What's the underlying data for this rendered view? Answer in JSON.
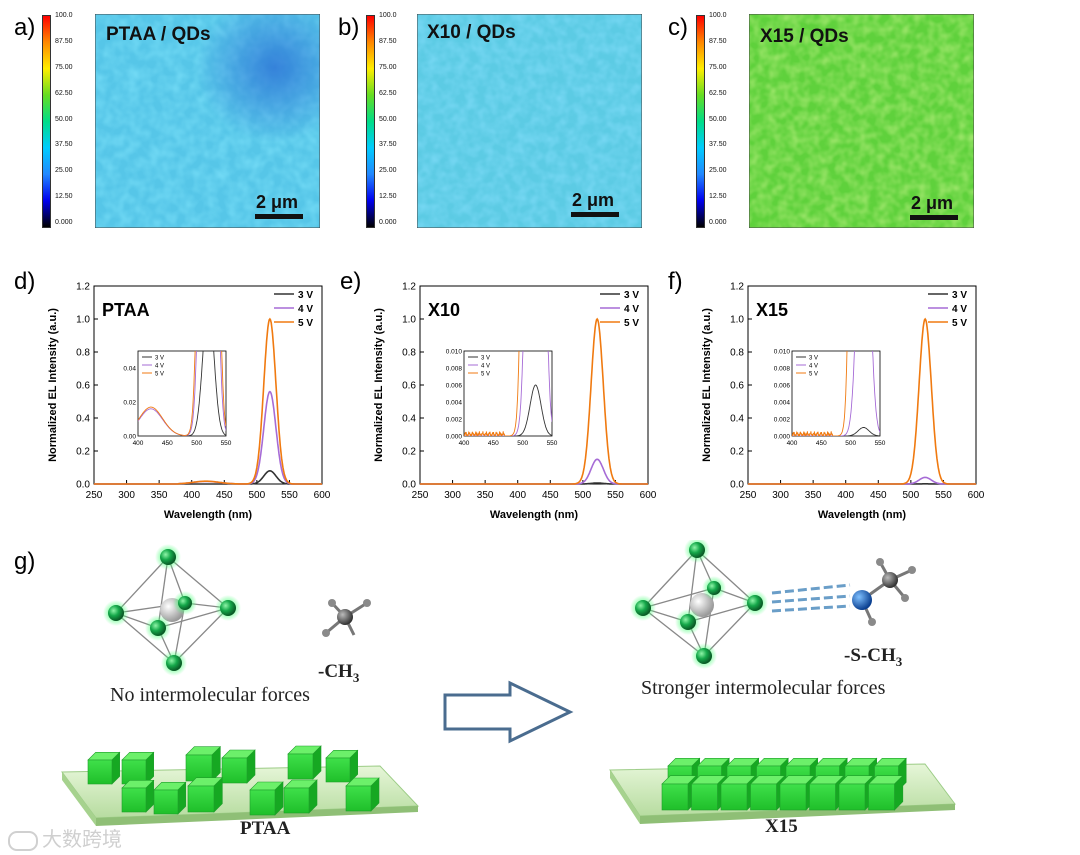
{
  "maps": [
    {
      "letter": "a)",
      "title": "PTAA / QDs",
      "scale": "2 μm"
    },
    {
      "letter": "b)",
      "title": "X10 / QDs",
      "scale": "2 μm"
    },
    {
      "letter": "c)",
      "title": "X15 / QDs",
      "scale": "2 μm"
    }
  ],
  "colorbar_ticks": [
    "100.0",
    "87.50",
    "75.00",
    "62.50",
    "50.00",
    "37.50",
    "25.00",
    "12.50",
    "0.000"
  ],
  "colors": {
    "line_3v": "#333333",
    "line_4v": "#a66bd6",
    "line_5v": "#f07a10",
    "map_cool": "#4fc3ea",
    "map_green": "#62d23a"
  },
  "chart_data": [
    {
      "letter": "d)",
      "type": "line",
      "title": "PTAA",
      "xlabel": "Wavelength (nm)",
      "ylabel": "Normalized EL Intensity (a.u.)",
      "xlim": [
        250,
        600
      ],
      "ylim": [
        0,
        1.2
      ],
      "xticks": [
        "250",
        "300",
        "350",
        "400",
        "450",
        "500",
        "550",
        "600"
      ],
      "yticks": [
        "0.0",
        "0.2",
        "0.4",
        "0.6",
        "0.8",
        "1.0",
        "1.2"
      ],
      "series": [
        {
          "name": "3 V",
          "peak": 520,
          "fwhm": 22,
          "amplitude": 0.08
        },
        {
          "name": "4 V",
          "peak": 520,
          "fwhm": 22,
          "amplitude": 0.56,
          "shoulder": {
            "center": 422,
            "width": 20,
            "amplitude": 0.016
          }
        },
        {
          "name": "5 V",
          "peak": 520,
          "fwhm": 22,
          "amplitude": 1.0,
          "shoulder": {
            "center": 422,
            "width": 20,
            "amplitude": 0.017
          }
        }
      ],
      "inset": {
        "xlim": [
          400,
          550
        ],
        "ylim": [
          0,
          0.05
        ],
        "xticks": [
          "400",
          "450",
          "500",
          "550"
        ],
        "yticks": [
          "0.00",
          "0.02",
          "0.04"
        ]
      }
    },
    {
      "letter": "e)",
      "type": "line",
      "title": "X10",
      "xlabel": "Wavelength (nm)",
      "ylabel": "Normalized EL Intensity (a.u.)",
      "xlim": [
        250,
        600
      ],
      "ylim": [
        0,
        1.2
      ],
      "xticks": [
        "250",
        "300",
        "350",
        "400",
        "450",
        "500",
        "550",
        "600"
      ],
      "yticks": [
        "0.0",
        "0.2",
        "0.4",
        "0.6",
        "0.8",
        "1.0",
        "1.2"
      ],
      "series": [
        {
          "name": "3 V",
          "peak": 522,
          "fwhm": 22,
          "amplitude": 0.006
        },
        {
          "name": "4 V",
          "peak": 522,
          "fwhm": 22,
          "amplitude": 0.15
        },
        {
          "name": "5 V",
          "peak": 522,
          "fwhm": 22,
          "amplitude": 1.0
        }
      ],
      "inset": {
        "xlim": [
          400,
          550
        ],
        "ylim": [
          0,
          0.01
        ],
        "xticks": [
          "400",
          "450",
          "500",
          "550"
        ],
        "yticks": [
          "0.000",
          "0.002",
          "0.004",
          "0.006",
          "0.008",
          "0.010"
        ]
      }
    },
    {
      "letter": "f)",
      "type": "line",
      "title": "X15",
      "xlabel": "Wavelength (nm)",
      "ylabel": "Normalized EL Intensity (a.u.)",
      "xlim": [
        250,
        600
      ],
      "ylim": [
        0,
        1.2
      ],
      "xticks": [
        "250",
        "300",
        "350",
        "400",
        "450",
        "500",
        "550",
        "600"
      ],
      "yticks": [
        "0.0",
        "0.2",
        "0.4",
        "0.6",
        "0.8",
        "1.0",
        "1.2"
      ],
      "series": [
        {
          "name": "3 V",
          "peak": 522,
          "fwhm": 22,
          "amplitude": 0.001
        },
        {
          "name": "4 V",
          "peak": 522,
          "fwhm": 22,
          "amplitude": 0.04
        },
        {
          "name": "5 V",
          "peak": 522,
          "fwhm": 22,
          "amplitude": 1.0
        }
      ],
      "inset": {
        "xlim": [
          400,
          550
        ],
        "ylim": [
          0,
          0.01
        ],
        "xticks": [
          "400",
          "450",
          "500",
          "550"
        ],
        "yticks": [
          "0.000",
          "0.002",
          "0.004",
          "0.006",
          "0.008",
          "0.010"
        ]
      }
    }
  ],
  "scheme": {
    "letter": "g)",
    "left_caption": "No intermolecular forces",
    "left_group": "-CH",
    "left_group_sub": "3",
    "right_caption": "Stronger intermolecular forces",
    "right_group": "-S-CH",
    "right_group_sub": "3",
    "left_substrate": "PTAA",
    "right_substrate": "X15"
  },
  "watermark": "大数跨境"
}
